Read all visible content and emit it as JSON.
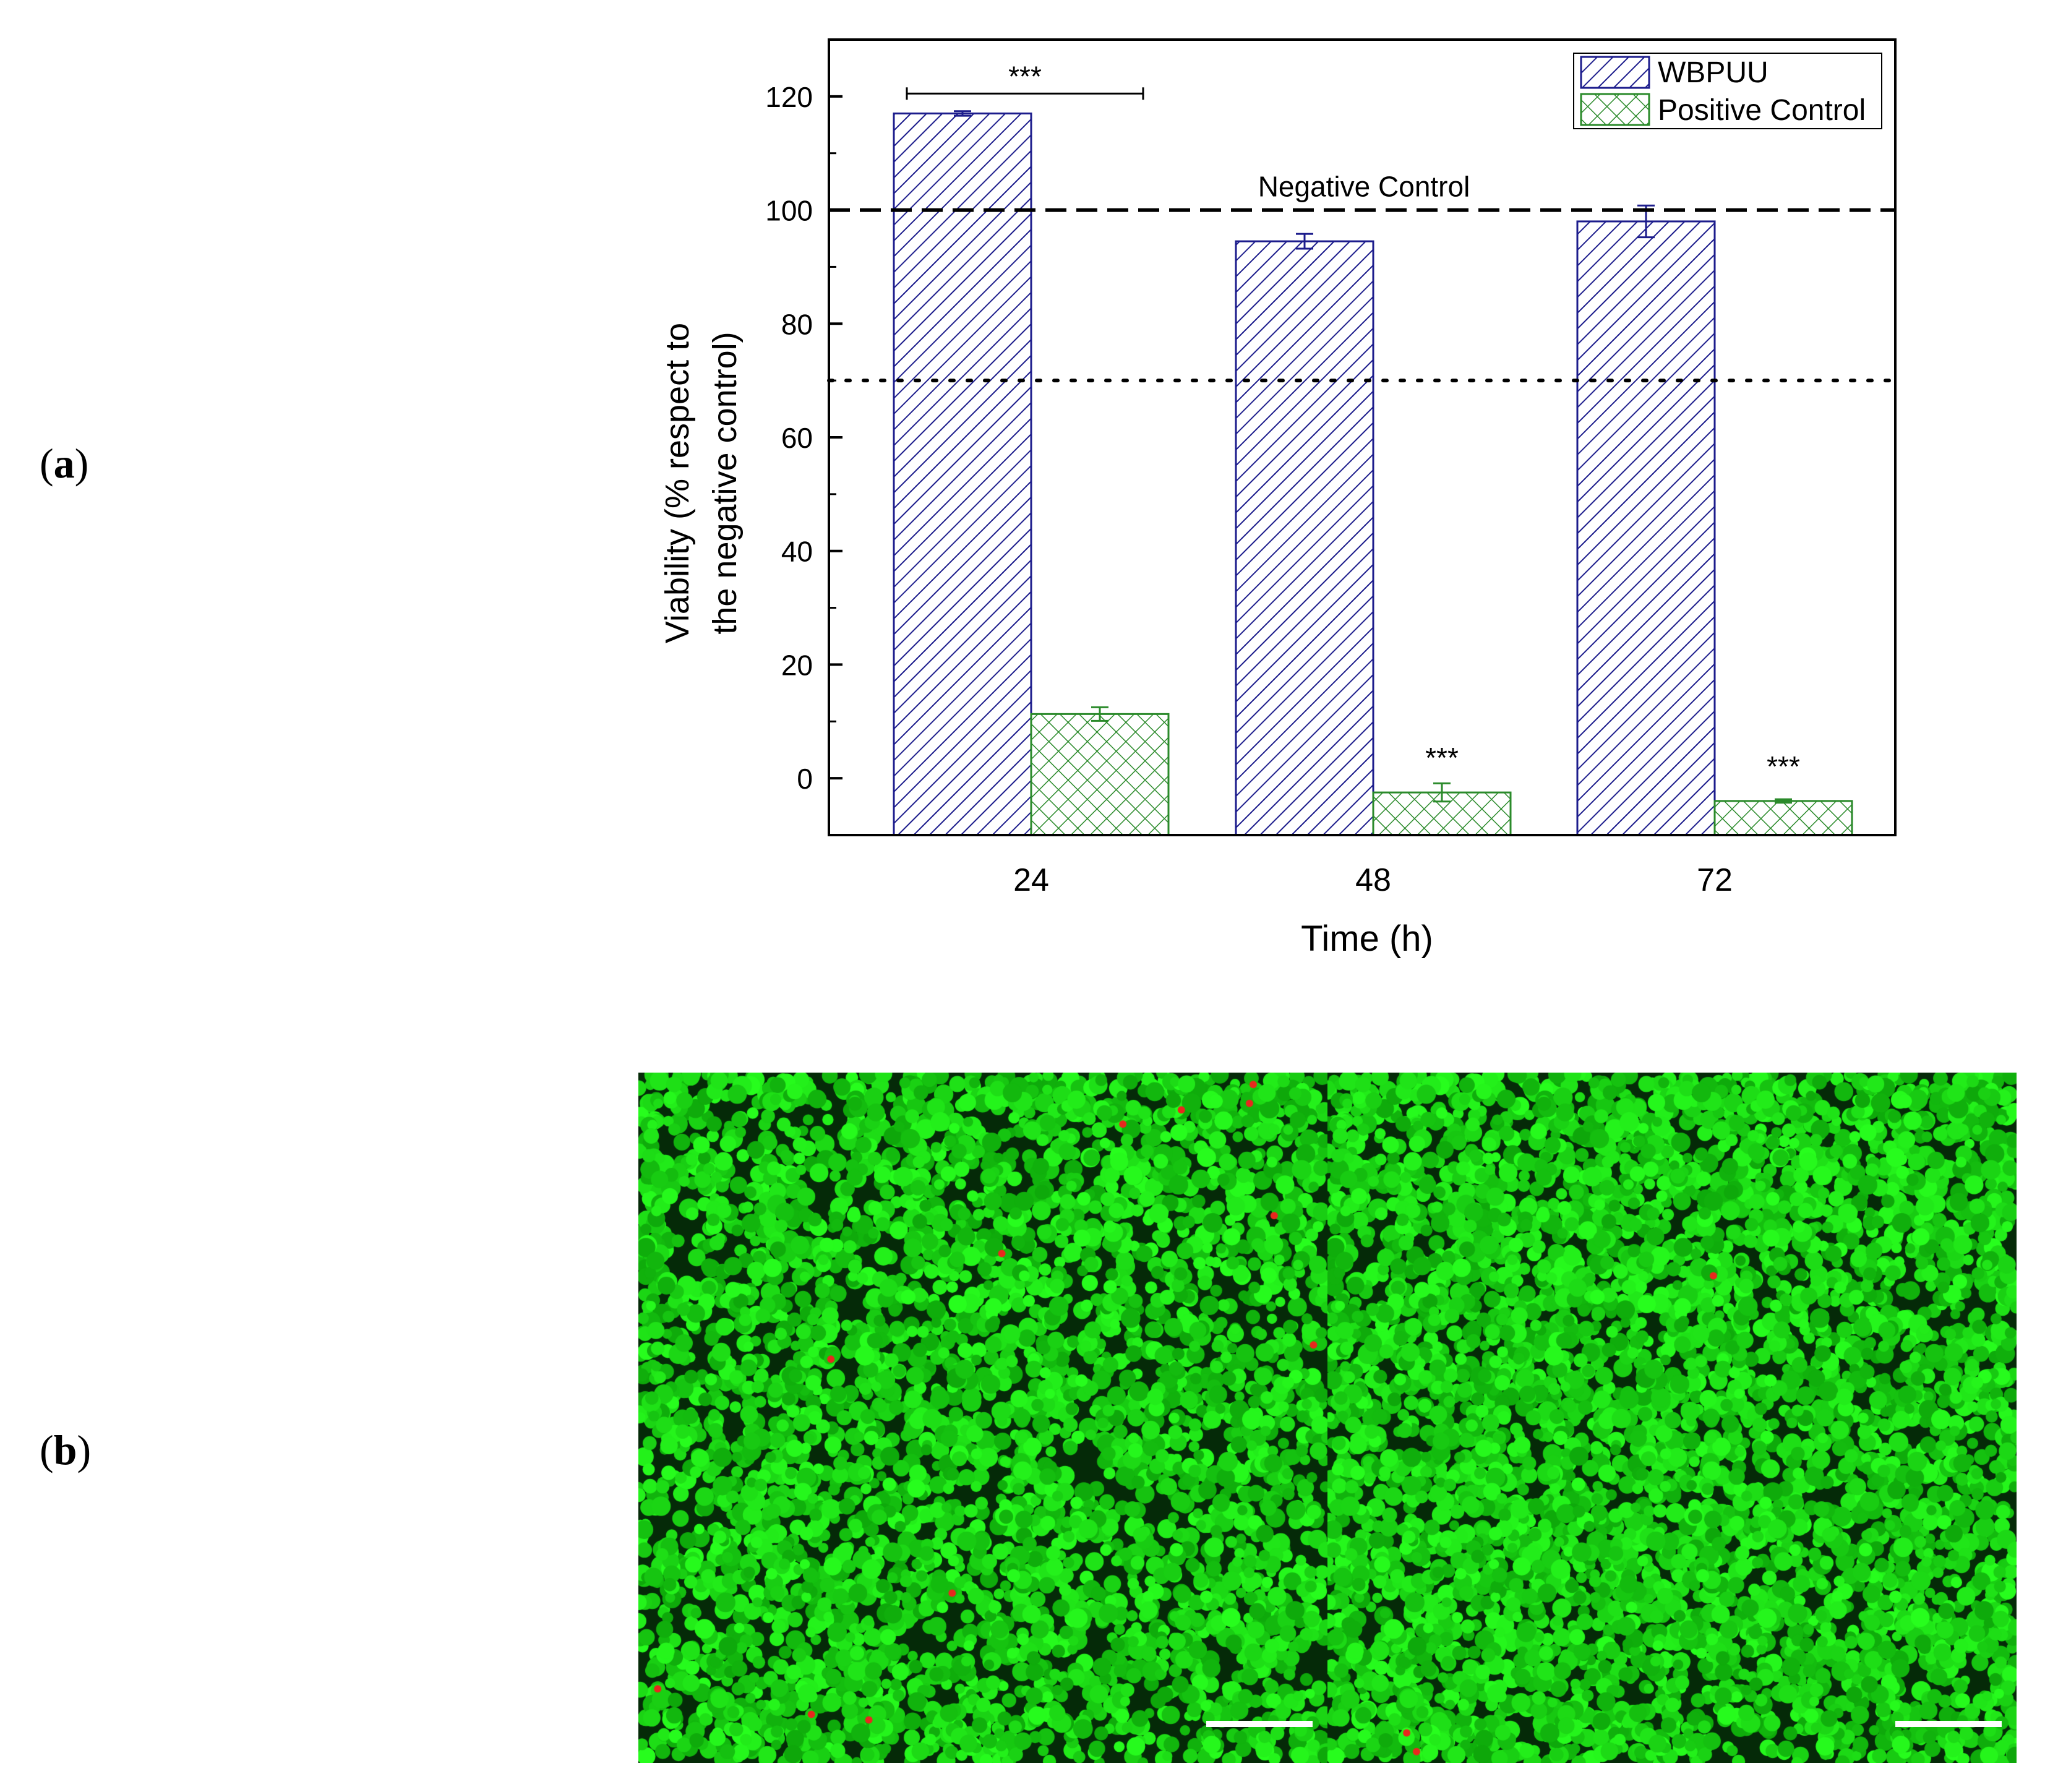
{
  "panels": {
    "a_letter": "a",
    "b_letter": "b"
  },
  "chart_data": {
    "type": "bar",
    "categories": [
      "24",
      "48",
      "72"
    ],
    "series": [
      {
        "name": "WBPUU",
        "values": [
          117,
          94.5,
          98
        ],
        "errors": [
          0.4,
          1.3,
          2.8
        ],
        "color": "#1c1c8c",
        "pattern": "diagonal-hatch"
      },
      {
        "name": "Positive Control",
        "values": [
          11.3,
          -2.5,
          -4
        ],
        "errors": [
          1.2,
          1.6,
          0.3
        ],
        "color": "#2a8a2a",
        "pattern": "crosshatch"
      }
    ],
    "xlabel": "Time (h)",
    "ylabel_line1": "Viability (% respect to",
    "ylabel_line2": "the negative control)",
    "ylim": [
      -10,
      130
    ],
    "yticks": [
      "0",
      "20",
      "40",
      "60",
      "80",
      "100",
      "120"
    ],
    "reference_lines": [
      {
        "value": 100,
        "style": "dashed",
        "label": "Negative Control"
      },
      {
        "value": 70,
        "style": "dotted",
        "label": ""
      }
    ],
    "annotations": [
      {
        "text": "***",
        "type": "bracket",
        "from": "24-WBPUU",
        "to": "24-Positive Control",
        "y": 120.5
      },
      {
        "text": "***",
        "type": "above-bar",
        "category": "48",
        "series": "Positive Control"
      },
      {
        "text": "***",
        "type": "above-bar",
        "category": "72",
        "series": "Positive Control"
      }
    ],
    "legend_position": "top-right",
    "grid": false
  },
  "micrographs": {
    "count": 2,
    "colors": {
      "live": "#22e02a",
      "dead": "#e8281e",
      "background": "#052a08"
    },
    "scale_bars": 2
  }
}
